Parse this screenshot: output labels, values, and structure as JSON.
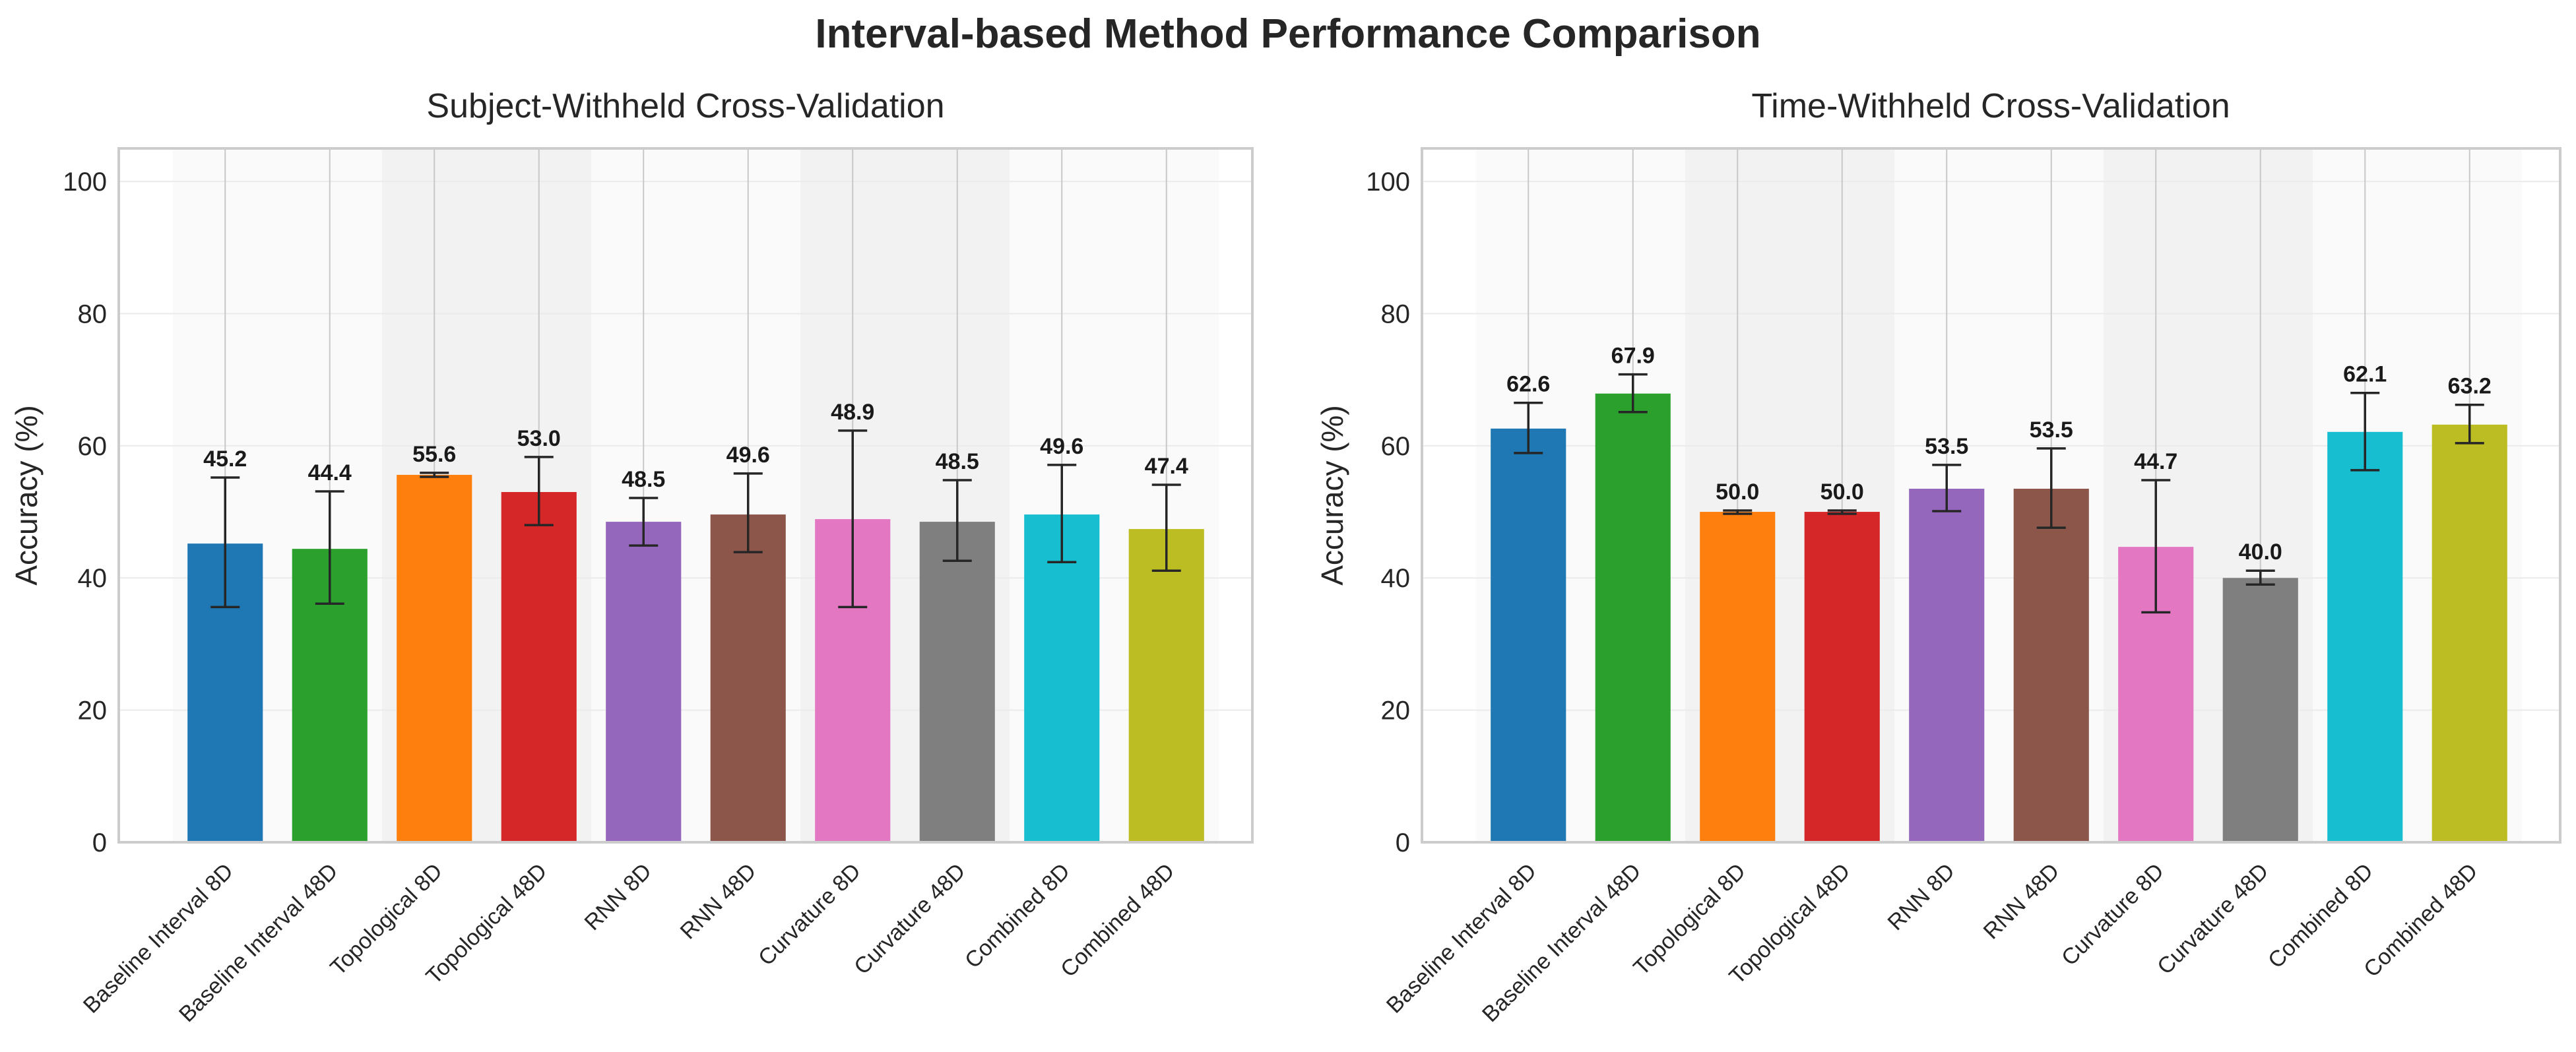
{
  "figure": {
    "title": "Interval-based Method Performance Comparison"
  },
  "chart_data": [
    {
      "type": "bar",
      "title": "Subject-Withheld Cross-Validation",
      "xlabel": "",
      "ylabel": "Accuracy (%)",
      "ylim": [
        0,
        105
      ],
      "yticks": [
        0,
        20,
        40,
        60,
        80,
        100
      ],
      "grid": true,
      "categories": [
        "Baseline Interval 8D",
        "Baseline Interval 48D",
        "Topological 8D",
        "Topological 48D",
        "RNN 8D",
        "RNN 48D",
        "Curvature 8D",
        "Curvature 48D",
        "Combined 8D",
        "Combined 48D"
      ],
      "values": [
        45.2,
        44.4,
        55.6,
        53.0,
        48.5,
        49.6,
        48.9,
        48.5,
        49.6,
        47.4
      ],
      "error_low": [
        35.6,
        36.1,
        55.3,
        48.0,
        44.9,
        43.9,
        35.6,
        42.6,
        42.4,
        41.1
      ],
      "error_high": [
        55.2,
        53.1,
        55.9,
        58.3,
        52.1,
        55.8,
        62.3,
        54.8,
        57.1,
        54.1
      ],
      "value_labels": [
        "45.2",
        "44.4",
        "55.6",
        "53.0",
        "48.5",
        "49.6",
        "48.9",
        "48.5",
        "49.6",
        "47.4"
      ],
      "colors": [
        "#1f77b4",
        "#2ca02c",
        "#ff7f0e",
        "#d62728",
        "#9467bd",
        "#8c564b",
        "#e377c2",
        "#7f7f7f",
        "#17becf",
        "#bcbd22"
      ]
    },
    {
      "type": "bar",
      "title": "Time-Withheld Cross-Validation",
      "xlabel": "",
      "ylabel": "Accuracy (%)",
      "ylim": [
        0,
        105
      ],
      "yticks": [
        0,
        20,
        40,
        60,
        80,
        100
      ],
      "grid": true,
      "categories": [
        "Baseline Interval 8D",
        "Baseline Interval 48D",
        "Topological 8D",
        "Topological 48D",
        "RNN 8D",
        "RNN 48D",
        "Curvature 8D",
        "Curvature 48D",
        "Combined 8D",
        "Combined 48D"
      ],
      "values": [
        62.6,
        67.9,
        50.0,
        50.0,
        53.5,
        53.5,
        44.7,
        40.0,
        62.1,
        63.2
      ],
      "error_low": [
        58.9,
        65.1,
        49.7,
        49.7,
        50.1,
        47.6,
        34.8,
        39.0,
        56.3,
        60.4
      ],
      "error_high": [
        66.5,
        70.8,
        50.2,
        50.2,
        57.1,
        59.6,
        54.8,
        41.1,
        68.0,
        66.2
      ],
      "value_labels": [
        "62.6",
        "67.9",
        "50.0",
        "50.0",
        "53.5",
        "53.5",
        "44.7",
        "40.0",
        "62.1",
        "63.2"
      ],
      "colors": [
        "#1f77b4",
        "#2ca02c",
        "#ff7f0e",
        "#d62728",
        "#9467bd",
        "#8c564b",
        "#e377c2",
        "#7f7f7f",
        "#17becf",
        "#bcbd22"
      ]
    }
  ]
}
